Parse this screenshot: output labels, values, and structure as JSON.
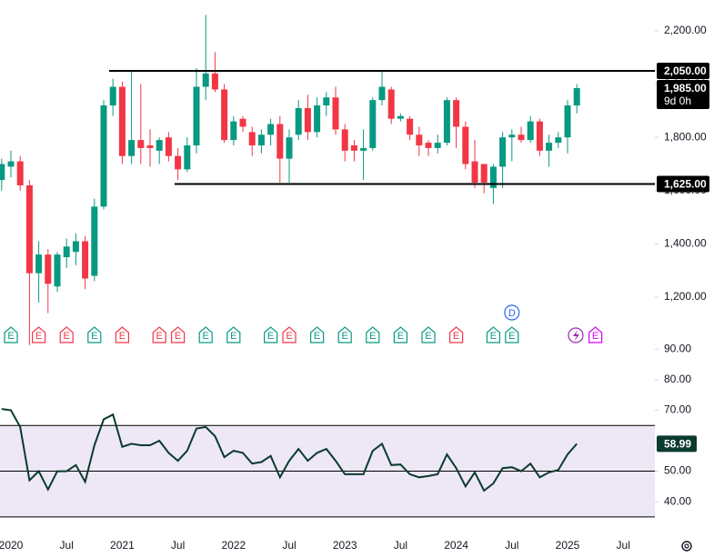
{
  "chart_data": [
    {
      "type": "candlestick",
      "up_color": "#089981",
      "down_color": "#f23645",
      "open": [
        1640,
        1690,
        1710,
        1620,
        1290,
        1360,
        1240,
        1350,
        1370,
        1410,
        1280,
        1540,
        1920,
        1990,
        1730,
        1790,
        1770,
        1750,
        1800,
        1730,
        1680,
        1770,
        1990,
        2040,
        1980,
        1790,
        1870,
        1820,
        1770,
        1810,
        1850,
        1720,
        1810,
        1910,
        1820,
        1920,
        1950,
        1830,
        1770,
        1750,
        1760,
        1940,
        1980,
        1870,
        1870,
        1810,
        1780,
        1760,
        1780,
        1940,
        1840,
        1710,
        1700,
        1610,
        1690,
        1800,
        1810,
        1790,
        1860,
        1750,
        1780,
        1800,
        1920,
        null,
        null,
        null,
        null,
        null
      ],
      "high": [
        1720,
        1750,
        1730,
        1640,
        1410,
        1380,
        1370,
        1420,
        1440,
        1430,
        1570,
        1940,
        2020,
        2010,
        2050,
        2000,
        1830,
        1800,
        1820,
        1760,
        1800,
        2060,
        2260,
        2120,
        2000,
        1880,
        1880,
        1840,
        1830,
        1870,
        1880,
        1830,
        1940,
        1960,
        1950,
        1970,
        1990,
        1850,
        1790,
        1830,
        1950,
        2050,
        1990,
        1890,
        1880,
        1840,
        1790,
        1810,
        1950,
        1950,
        1860,
        1790,
        1700,
        1700,
        1820,
        1830,
        1840,
        1880,
        1870,
        1810,
        1820,
        1940,
        2000,
        null,
        null,
        null,
        null,
        null
      ],
      "low": [
        1600,
        1650,
        1600,
        1020,
        1180,
        1140,
        1220,
        1310,
        1320,
        1230,
        1260,
        1530,
        1880,
        1700,
        1700,
        1700,
        1690,
        1700,
        1710,
        1640,
        1670,
        1740,
        1940,
        1970,
        1780,
        1770,
        1820,
        1730,
        1740,
        1770,
        1630,
        1630,
        1790,
        1790,
        1800,
        1880,
        1810,
        1710,
        1710,
        1640,
        1750,
        1920,
        1850,
        1860,
        1790,
        1730,
        1730,
        1740,
        1770,
        1760,
        1680,
        1610,
        1590,
        1550,
        1610,
        1710,
        1780,
        1780,
        1730,
        1690,
        1760,
        1740,
        1890,
        null,
        null,
        null,
        null,
        null
      ],
      "close": [
        1700,
        1710,
        1620,
        1290,
        1360,
        1250,
        1360,
        1390,
        1410,
        1270,
        1540,
        1920,
        1990,
        1730,
        1790,
        1760,
        1760,
        1790,
        1730,
        1680,
        1770,
        1990,
        2040,
        1980,
        1790,
        1860,
        1840,
        1770,
        1810,
        1850,
        1720,
        1800,
        1910,
        1820,
        1920,
        1950,
        1830,
        1750,
        1750,
        1760,
        1940,
        1990,
        1870,
        1880,
        1810,
        1770,
        1760,
        1780,
        1940,
        1840,
        1700,
        1630,
        1630,
        1690,
        1800,
        1810,
        1790,
        1860,
        1750,
        1780,
        1800,
        1920,
        1985,
        null,
        null,
        null,
        null,
        null
      ],
      "ylim": [
        1026,
        2316
      ],
      "yticks": [
        {
          "value": 1200,
          "label": "1,200.00"
        },
        {
          "value": 1400,
          "label": "1,400.00"
        },
        {
          "value": 1600,
          "label": "1,600.00"
        },
        {
          "value": 1800,
          "label": "1,800.00"
        },
        {
          "value": 2000,
          "label": "2,000.00"
        },
        {
          "value": 2200,
          "label": "2,200.00"
        }
      ],
      "levels": [
        {
          "value": 2050,
          "label": "2,050.00"
        },
        {
          "value": 1625,
          "label": "1,625.00"
        }
      ],
      "last_price": {
        "value": 1985,
        "label": "1,985.00"
      },
      "countdown": "9d 0h",
      "events": [
        {
          "at": 1,
          "label": "E",
          "color": "#089981"
        },
        {
          "at": 4,
          "label": "E",
          "color": "#f23645"
        },
        {
          "at": 7,
          "label": "E",
          "color": "#f23645"
        },
        {
          "at": 10,
          "label": "E",
          "color": "#089981"
        },
        {
          "at": 13,
          "label": "E",
          "color": "#f23645"
        },
        {
          "at": 17,
          "label": "E",
          "color": "#f23645"
        },
        {
          "at": 19,
          "label": "E",
          "color": "#f23645"
        },
        {
          "at": 22,
          "label": "E",
          "color": "#089981"
        },
        {
          "at": 25,
          "label": "E",
          "color": "#089981"
        },
        {
          "at": 29,
          "label": "E",
          "color": "#089981"
        },
        {
          "at": 31,
          "label": "E",
          "color": "#f23645"
        },
        {
          "at": 34,
          "label": "E",
          "color": "#089981"
        },
        {
          "at": 37,
          "label": "E",
          "color": "#089981"
        },
        {
          "at": 40,
          "label": "E",
          "color": "#089981"
        },
        {
          "at": 43,
          "label": "E",
          "color": "#089981"
        },
        {
          "at": 46,
          "label": "E",
          "color": "#089981"
        },
        {
          "at": 49,
          "label": "E",
          "color": "#f23645"
        },
        {
          "at": 53,
          "label": "E",
          "color": "#089981"
        },
        {
          "at": 55,
          "label": "E",
          "color": "#089981"
        },
        {
          "at": 64,
          "label": "E",
          "color": "#d500f9"
        }
      ],
      "dividends": [
        {
          "at": 55,
          "label": "D",
          "color": "#2962ff"
        }
      ]
    },
    {
      "type": "line",
      "color": "#0b3a2e",
      "categories": [
        null,
        "2020",
        null,
        null,
        null,
        null,
        null,
        "Jul",
        null,
        null,
        null,
        null,
        null,
        "2021",
        null,
        null,
        null,
        null,
        null,
        "Jul",
        null,
        null,
        null,
        null,
        null,
        "2022",
        null,
        null,
        null,
        null,
        null,
        "Jul",
        null,
        null,
        null,
        null,
        null,
        "2023",
        null,
        null,
        null,
        null,
        null,
        "Jul",
        null,
        null,
        null,
        null,
        null,
        "2024",
        null,
        null,
        null,
        null,
        null,
        "Jul",
        null,
        null,
        null,
        null,
        null,
        "2025",
        null,
        null,
        null,
        null,
        null,
        "Jul"
      ],
      "values": [
        70.4,
        70,
        64.5,
        47,
        50,
        44,
        50,
        50,
        52,
        46.5,
        58.5,
        67,
        68.6,
        58,
        59,
        58.5,
        58.5,
        60,
        56,
        53.4,
        56.7,
        64,
        64.5,
        61.5,
        54.6,
        56.7,
        56,
        52.5,
        53,
        55,
        48,
        53.4,
        57.3,
        53.4,
        56,
        57.3,
        53.4,
        49,
        49,
        49,
        56.7,
        59,
        52,
        52.2,
        49,
        48,
        48.4,
        49,
        55.5,
        51,
        45,
        49.6,
        43.6,
        46,
        51,
        51.3,
        50,
        52.5,
        48,
        49.6,
        50.4,
        55.5,
        58.99,
        null,
        null,
        null,
        null,
        null
      ],
      "ylim": [
        28.7,
        91.9
      ],
      "yticks": [
        {
          "value": 40,
          "label": "40.00"
        },
        {
          "value": 50,
          "label": "50.00"
        },
        {
          "value": 60,
          "label": "60.00"
        },
        {
          "value": 70,
          "label": "70.00"
        },
        {
          "value": 80,
          "label": "80.00"
        },
        {
          "value": 90,
          "label": "90.00"
        }
      ],
      "bands": [
        65,
        50,
        35
      ],
      "band_fill": "#ede7f6"
    }
  ]
}
